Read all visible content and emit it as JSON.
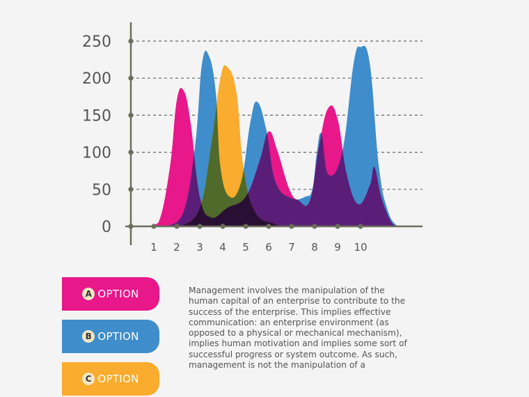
{
  "chart_data": {
    "type": "area",
    "title": "",
    "xlabel": "",
    "ylabel": "",
    "ylim": [
      0,
      250
    ],
    "xlim": [
      0,
      11.6
    ],
    "x_ticks": [
      1,
      2,
      3,
      4,
      5,
      6,
      7,
      8,
      9,
      10
    ],
    "y_ticks": [
      0,
      50,
      100,
      150,
      200,
      250
    ],
    "grid": true,
    "series": [
      {
        "key": "A",
        "color": "#e8178a",
        "points": [
          [
            0.6,
            0
          ],
          [
            1.2,
            5
          ],
          [
            1.7,
            80
          ],
          [
            2.0,
            170
          ],
          [
            2.3,
            183
          ],
          [
            2.6,
            140
          ],
          [
            3.0,
            40
          ],
          [
            3.5,
            12
          ],
          [
            4.2,
            25
          ],
          [
            5.0,
            40
          ],
          [
            5.6,
            88
          ],
          [
            6.0,
            128
          ],
          [
            6.4,
            100
          ],
          [
            6.9,
            50
          ],
          [
            7.3,
            35
          ],
          [
            7.8,
            35
          ],
          [
            8.2,
            110
          ],
          [
            8.6,
            160
          ],
          [
            9.0,
            145
          ],
          [
            9.4,
            70
          ],
          [
            9.9,
            30
          ],
          [
            10.4,
            55
          ],
          [
            10.6,
            80
          ],
          [
            10.9,
            40
          ],
          [
            11.3,
            8
          ],
          [
            11.6,
            0
          ]
        ]
      },
      {
        "key": "B",
        "color": "#3f8dcb",
        "points": [
          [
            1.6,
            0
          ],
          [
            2.3,
            20
          ],
          [
            2.8,
            110
          ],
          [
            3.1,
            220
          ],
          [
            3.4,
            230
          ],
          [
            3.7,
            180
          ],
          [
            3.9,
            80
          ],
          [
            4.3,
            40
          ],
          [
            4.8,
            60
          ],
          [
            5.2,
            140
          ],
          [
            5.5,
            168
          ],
          [
            5.9,
            130
          ],
          [
            6.3,
            60
          ],
          [
            7.0,
            38
          ],
          [
            7.6,
            40
          ],
          [
            7.9,
            50
          ],
          [
            8.1,
            100
          ],
          [
            8.3,
            125
          ],
          [
            8.6,
            70
          ],
          [
            9.2,
            100
          ],
          [
            9.7,
            220
          ],
          [
            10.0,
            242
          ],
          [
            10.4,
            220
          ],
          [
            10.8,
            80
          ],
          [
            11.2,
            20
          ],
          [
            11.6,
            0
          ]
        ]
      },
      {
        "key": "C",
        "color": "#f9ac2d",
        "points": [
          [
            2.2,
            0
          ],
          [
            3.0,
            25
          ],
          [
            3.5,
            110
          ],
          [
            3.9,
            200
          ],
          [
            4.2,
            215
          ],
          [
            4.6,
            180
          ],
          [
            4.9,
            80
          ],
          [
            5.4,
            20
          ],
          [
            6.2,
            4
          ],
          [
            6.8,
            0
          ]
        ]
      }
    ]
  },
  "legend": [
    {
      "key": "A",
      "badge": "A",
      "label": "OPTION",
      "color": "#e8178a"
    },
    {
      "key": "B",
      "badge": "B",
      "label": "OPTION",
      "color": "#3f8dcb"
    },
    {
      "key": "C",
      "badge": "C",
      "label": "OPTION",
      "color": "#f9ac2d"
    }
  ],
  "description": "Management involves the manipulation of the human capital of an enterprise to contribute to the success of the enterprise. This implies effective communication: an enterprise environment (as opposed to a physical or mechanical mechanism), implies human motivation and implies some sort of successful progress or system outcome. As such, management is not the manipulation of a",
  "colors": {
    "axis": "#6b6e5b",
    "grid": "#666666",
    "text": "#555555",
    "background": "#f4f4f4"
  }
}
